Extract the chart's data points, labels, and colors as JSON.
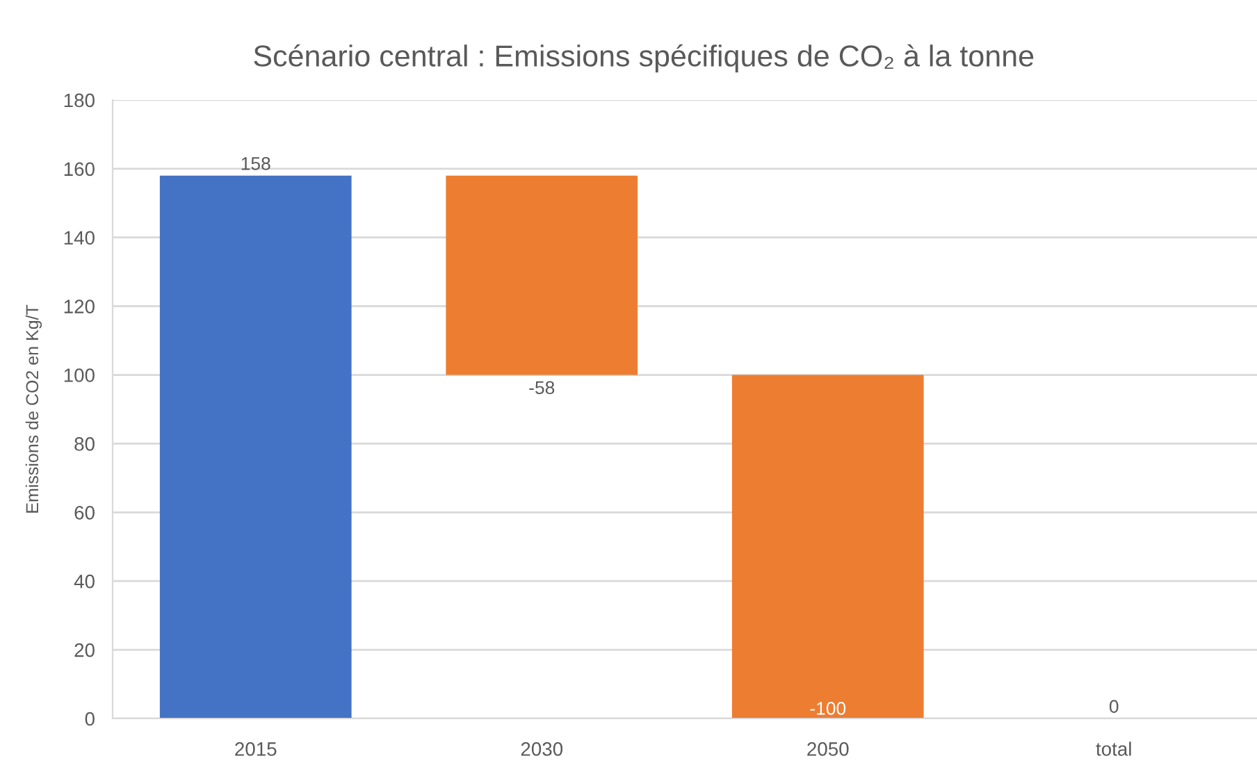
{
  "chart_data": {
    "type": "bar",
    "title": "Scénario central : Emissions spécifiques de CO₂ à la tonne",
    "ylabel": "Emissions de CO2 en Kg/T",
    "categories": [
      "2015",
      "2030",
      "2050",
      "total"
    ],
    "values": [
      158,
      -58,
      -100,
      0
    ],
    "base": [
      0,
      158,
      100,
      null
    ],
    "colors": [
      "#4472c4",
      "#ed7d31",
      "#ed7d31",
      "#a5a5a5"
    ],
    "ylim": [
      0,
      180
    ],
    "yticks": [
      0,
      20,
      40,
      60,
      80,
      100,
      120,
      140,
      160,
      180
    ],
    "grid": "y",
    "data_labels": true
  }
}
